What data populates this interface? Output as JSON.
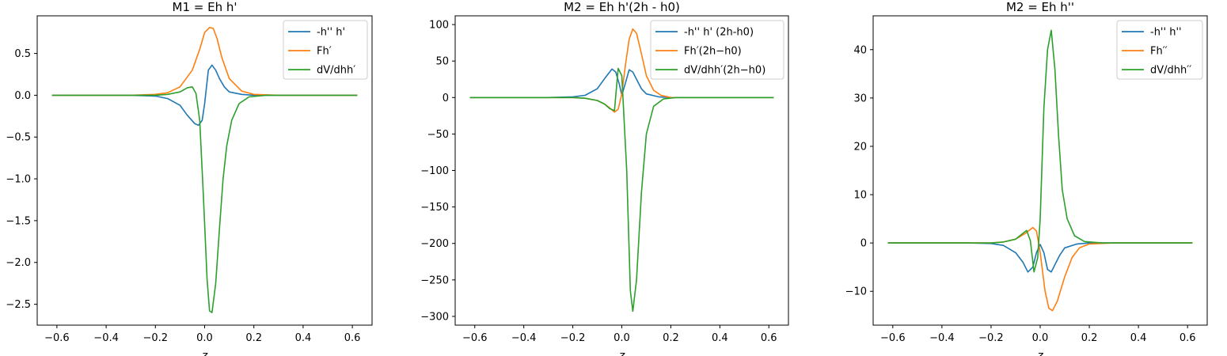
{
  "chart_data": [
    {
      "type": "line",
      "title": "M1 = Eh h'",
      "xlabel": "z",
      "ylabel": "",
      "xlim": [
        -0.68,
        0.68
      ],
      "ylim": [
        -2.75,
        0.95
      ],
      "xticks": [
        -0.6,
        -0.4,
        -0.2,
        0.0,
        0.2,
        0.4,
        0.6
      ],
      "xtick_labels": [
        "−0.6",
        "−0.4",
        "−0.2",
        "0.0",
        "0.2",
        "0.4",
        "0.6"
      ],
      "yticks": [
        -2.5,
        -2.0,
        -1.5,
        -1.0,
        -0.5,
        0.0,
        0.5
      ],
      "ytick_labels": [
        "−2.5",
        "−2.0",
        "−1.5",
        "−1.0",
        "−0.5",
        "0.0",
        "0.5"
      ],
      "legend_position": "top-right",
      "series": [
        {
          "name": "-h'' h'",
          "color": "#1f77b4",
          "x": [
            -0.62,
            -0.3,
            -0.2,
            -0.15,
            -0.1,
            -0.07,
            -0.04,
            -0.025,
            -0.01,
            0.0,
            0.015,
            0.03,
            0.045,
            0.06,
            0.08,
            0.1,
            0.15,
            0.2,
            0.3,
            0.62
          ],
          "y": [
            0,
            0,
            -0.01,
            -0.04,
            -0.12,
            -0.24,
            -0.34,
            -0.36,
            -0.3,
            -0.1,
            0.3,
            0.36,
            0.3,
            0.2,
            0.1,
            0.04,
            0.01,
            0,
            0,
            0
          ]
        },
        {
          "name": "Fh′",
          "color": "#ff7f0e",
          "x": [
            -0.62,
            -0.3,
            -0.2,
            -0.15,
            -0.1,
            -0.05,
            -0.02,
            0.0,
            0.02,
            0.035,
            0.05,
            0.07,
            0.1,
            0.15,
            0.2,
            0.3,
            0.62
          ],
          "y": [
            0,
            0,
            0.01,
            0.03,
            0.1,
            0.3,
            0.55,
            0.75,
            0.81,
            0.8,
            0.68,
            0.45,
            0.2,
            0.05,
            0.01,
            0,
            0
          ]
        },
        {
          "name": "dV/dhh′",
          "color": "#2ca02c",
          "x": [
            -0.62,
            -0.3,
            -0.2,
            -0.15,
            -0.1,
            -0.07,
            -0.05,
            -0.035,
            -0.02,
            -0.005,
            0.01,
            0.02,
            0.03,
            0.045,
            0.06,
            0.075,
            0.09,
            0.11,
            0.14,
            0.18,
            0.25,
            0.62
          ],
          "y": [
            0,
            0,
            0,
            0.01,
            0.04,
            0.09,
            0.1,
            0.02,
            -0.3,
            -1.2,
            -2.2,
            -2.58,
            -2.6,
            -2.25,
            -1.6,
            -1.0,
            -0.6,
            -0.3,
            -0.1,
            -0.02,
            0,
            0
          ]
        }
      ]
    },
    {
      "type": "line",
      "title": "M2 = Eh h'(2h - h0)",
      "xlabel": "z",
      "ylabel": "",
      "xlim": [
        -0.68,
        0.68
      ],
      "ylim": [
        -312,
        112
      ],
      "xticks": [
        -0.6,
        -0.4,
        -0.2,
        0.0,
        0.2,
        0.4,
        0.6
      ],
      "xtick_labels": [
        "−0.6",
        "−0.4",
        "−0.2",
        "0.0",
        "0.2",
        "0.4",
        "0.6"
      ],
      "yticks": [
        -300,
        -250,
        -200,
        -150,
        -100,
        -50,
        0,
        50,
        100
      ],
      "ytick_labels": [
        "−300",
        "−250",
        "−200",
        "−150",
        "−100",
        "−50",
        "0",
        "50",
        "100"
      ],
      "legend_position": "top-right",
      "series": [
        {
          "name": "-h'' h' (2h-h0)",
          "color": "#1f77b4",
          "x": [
            -0.62,
            -0.3,
            -0.2,
            -0.15,
            -0.1,
            -0.07,
            -0.04,
            -0.025,
            -0.01,
            0.0,
            0.015,
            0.03,
            0.045,
            0.06,
            0.08,
            0.1,
            0.15,
            0.2,
            0.3,
            0.62
          ],
          "y": [
            0,
            0,
            1,
            3,
            12,
            26,
            39,
            35,
            18,
            3,
            20,
            38,
            35,
            25,
            12,
            5,
            1,
            0,
            0,
            0
          ]
        },
        {
          "name": "Fh′(2h−h0)",
          "color": "#ff7f0e",
          "x": [
            -0.62,
            -0.3,
            -0.2,
            -0.15,
            -0.1,
            -0.07,
            -0.05,
            -0.03,
            -0.015,
            0.0,
            0.015,
            0.03,
            0.045,
            0.06,
            0.08,
            0.1,
            0.13,
            0.16,
            0.2,
            0.3,
            0.62
          ],
          "y": [
            0,
            0,
            0,
            -1,
            -4,
            -9,
            -14,
            -20,
            -16,
            5,
            45,
            80,
            94,
            88,
            60,
            30,
            10,
            3,
            0,
            0,
            0
          ]
        },
        {
          "name": "dV/dhh′(2h−h0)",
          "color": "#2ca02c",
          "x": [
            -0.62,
            -0.3,
            -0.2,
            -0.15,
            -0.1,
            -0.07,
            -0.05,
            -0.03,
            -0.015,
            0.0,
            0.02,
            0.035,
            0.045,
            0.06,
            0.08,
            0.1,
            0.13,
            0.17,
            0.22,
            0.3,
            0.62
          ],
          "y": [
            0,
            0,
            0,
            -1,
            -4,
            -9,
            -15,
            -18,
            40,
            30,
            -100,
            -265,
            -293,
            -250,
            -130,
            -50,
            -12,
            -2,
            0,
            0,
            0
          ]
        }
      ]
    },
    {
      "type": "line",
      "title": "M2 = Eh h''",
      "xlabel": "z",
      "ylabel": "",
      "xlim": [
        -0.68,
        0.68
      ],
      "ylim": [
        -17,
        47
      ],
      "xticks": [
        -0.6,
        -0.4,
        -0.2,
        0.0,
        0.2,
        0.4,
        0.6
      ],
      "xtick_labels": [
        "−0.6",
        "−0.4",
        "−0.2",
        "0.0",
        "0.2",
        "0.4",
        "0.6"
      ],
      "yticks": [
        -10,
        0,
        10,
        20,
        30,
        40
      ],
      "ytick_labels": [
        "−10",
        "0",
        "10",
        "20",
        "30",
        "40"
      ],
      "legend_position": "top-right",
      "series": [
        {
          "name": "-h'' h''",
          "color": "#1f77b4",
          "x": [
            -0.62,
            -0.3,
            -0.2,
            -0.15,
            -0.1,
            -0.07,
            -0.05,
            -0.03,
            -0.015,
            0.0,
            0.015,
            0.03,
            0.045,
            0.06,
            0.08,
            0.1,
            0.15,
            0.2,
            0.3,
            0.62
          ],
          "y": [
            0,
            0,
            -0.1,
            -0.5,
            -2,
            -4,
            -6,
            -5,
            -2,
            -0.3,
            -2,
            -5.5,
            -6,
            -4.5,
            -2.5,
            -1,
            -0.2,
            0,
            0,
            0
          ]
        },
        {
          "name": "Fh′′",
          "color": "#ff7f0e",
          "x": [
            -0.62,
            -0.3,
            -0.2,
            -0.15,
            -0.1,
            -0.06,
            -0.03,
            -0.015,
            0.0,
            0.02,
            0.035,
            0.05,
            0.07,
            0.1,
            0.13,
            0.16,
            0.2,
            0.3,
            0.62
          ],
          "y": [
            0,
            0,
            0,
            0.2,
            0.8,
            2,
            3.2,
            2.5,
            -2,
            -10,
            -13.5,
            -14,
            -12,
            -7,
            -3,
            -1,
            -0.2,
            0,
            0
          ]
        },
        {
          "name": "dV/dhh′′",
          "color": "#2ca02c",
          "x": [
            -0.62,
            -0.3,
            -0.2,
            -0.15,
            -0.1,
            -0.07,
            -0.055,
            -0.04,
            -0.025,
            -0.01,
            0.0,
            0.015,
            0.03,
            0.045,
            0.06,
            0.075,
            0.09,
            0.11,
            0.14,
            0.18,
            0.25,
            0.62
          ],
          "y": [
            0,
            0,
            0,
            0.2,
            0.8,
            2,
            2.6,
            0.5,
            -6,
            -3,
            5,
            28,
            40,
            44,
            36,
            22,
            11,
            5,
            1.5,
            0.3,
            0,
            0
          ]
        }
      ]
    }
  ]
}
